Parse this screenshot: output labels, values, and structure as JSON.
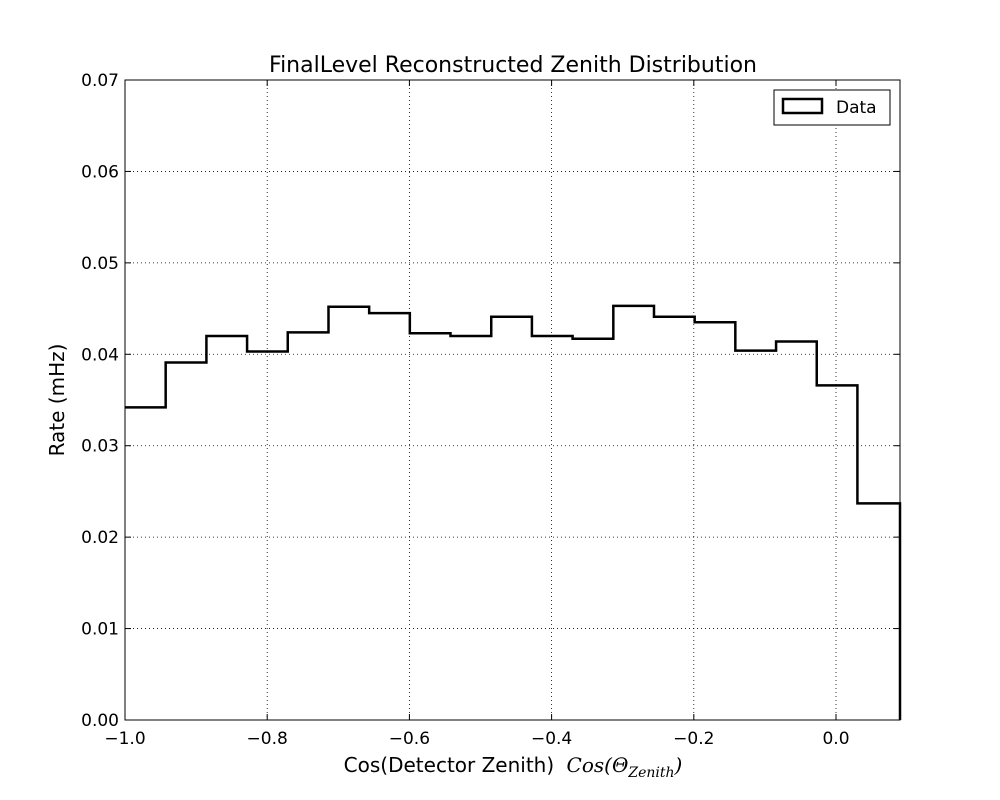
{
  "chart_data": {
    "type": "histogram",
    "title": "FinalLevel Reconstructed Zenith Distribution",
    "xlabel_text": "Cos(Detector Zenith)",
    "xlabel_math_base": "Cos(Θ",
    "xlabel_math_sub": "Zenith",
    "xlabel_math_close": ")",
    "ylabel": "Rate (mHz)",
    "xlim": [
      -1.0,
      0.09
    ],
    "ylim": [
      0.0,
      0.07
    ],
    "x_ticks": [
      -1.0,
      -0.8,
      -0.6,
      -0.4,
      -0.2,
      0.0
    ],
    "x_tick_labels": [
      "−1.0",
      "−0.8",
      "−0.6",
      "−0.4",
      "−0.2",
      "0.0"
    ],
    "y_ticks": [
      0.0,
      0.01,
      0.02,
      0.03,
      0.04,
      0.05,
      0.06,
      0.07
    ],
    "y_tick_labels": [
      "0.00",
      "0.01",
      "0.02",
      "0.03",
      "0.04",
      "0.05",
      "0.06",
      "0.07"
    ],
    "grid": true,
    "legend_position": "top-right",
    "series": [
      {
        "name": "Data",
        "color": "#000000",
        "bin_edges": [
          -1.0,
          -0.9428,
          -0.8855,
          -0.8283,
          -0.7711,
          -0.7138,
          -0.6566,
          -0.5994,
          -0.5422,
          -0.4849,
          -0.4277,
          -0.3705,
          -0.3132,
          -0.256,
          -0.1988,
          -0.1416,
          -0.0843,
          -0.0271,
          0.0301,
          0.09
        ],
        "values": [
          0.0342,
          0.0391,
          0.042,
          0.0403,
          0.0424,
          0.0452,
          0.0445,
          0.0423,
          0.042,
          0.0441,
          0.042,
          0.0417,
          0.0453,
          0.0441,
          0.0435,
          0.0404,
          0.0414,
          0.0366,
          0.0237
        ]
      }
    ]
  }
}
